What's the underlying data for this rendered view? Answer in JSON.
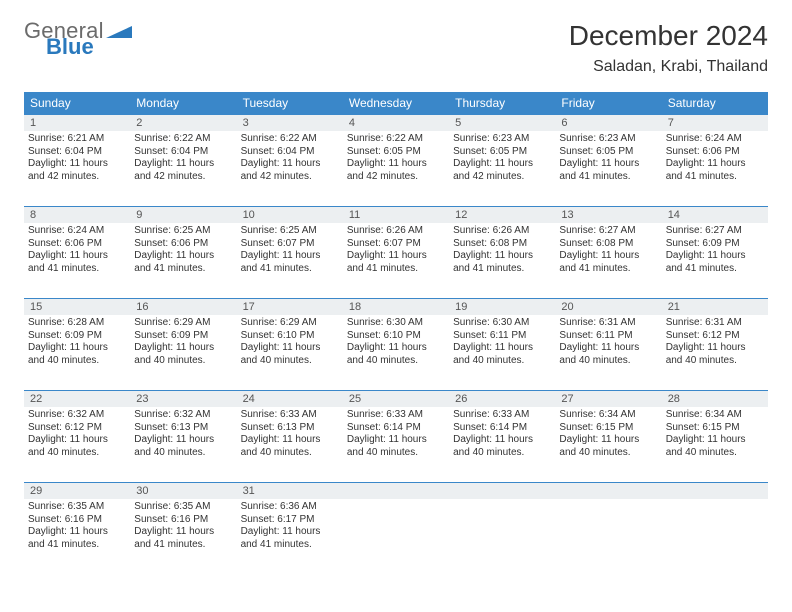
{
  "logo": {
    "textA": "General",
    "textB": "Blue",
    "shapeColor": "#2a79bd",
    "colorA": "#6b6b6b",
    "colorB": "#2a79bd"
  },
  "title": "December 2024",
  "location": "Saladan, Krabi, Thailand",
  "colors": {
    "headerBg": "#3a87c9",
    "headerText": "#ffffff",
    "dayNumBg": "#eceff1",
    "cellBorder": "#3a87c9",
    "text": "#333333"
  },
  "dayHeaders": [
    "Sunday",
    "Monday",
    "Tuesday",
    "Wednesday",
    "Thursday",
    "Friday",
    "Saturday"
  ],
  "firstDayColumn": 0,
  "days": [
    {
      "n": 1,
      "sunrise": "6:21 AM",
      "sunset": "6:04 PM",
      "daylight": "11 hours and 42 minutes."
    },
    {
      "n": 2,
      "sunrise": "6:22 AM",
      "sunset": "6:04 PM",
      "daylight": "11 hours and 42 minutes."
    },
    {
      "n": 3,
      "sunrise": "6:22 AM",
      "sunset": "6:04 PM",
      "daylight": "11 hours and 42 minutes."
    },
    {
      "n": 4,
      "sunrise": "6:22 AM",
      "sunset": "6:05 PM",
      "daylight": "11 hours and 42 minutes."
    },
    {
      "n": 5,
      "sunrise": "6:23 AM",
      "sunset": "6:05 PM",
      "daylight": "11 hours and 42 minutes."
    },
    {
      "n": 6,
      "sunrise": "6:23 AM",
      "sunset": "6:05 PM",
      "daylight": "11 hours and 41 minutes."
    },
    {
      "n": 7,
      "sunrise": "6:24 AM",
      "sunset": "6:06 PM",
      "daylight": "11 hours and 41 minutes."
    },
    {
      "n": 8,
      "sunrise": "6:24 AM",
      "sunset": "6:06 PM",
      "daylight": "11 hours and 41 minutes."
    },
    {
      "n": 9,
      "sunrise": "6:25 AM",
      "sunset": "6:06 PM",
      "daylight": "11 hours and 41 minutes."
    },
    {
      "n": 10,
      "sunrise": "6:25 AM",
      "sunset": "6:07 PM",
      "daylight": "11 hours and 41 minutes."
    },
    {
      "n": 11,
      "sunrise": "6:26 AM",
      "sunset": "6:07 PM",
      "daylight": "11 hours and 41 minutes."
    },
    {
      "n": 12,
      "sunrise": "6:26 AM",
      "sunset": "6:08 PM",
      "daylight": "11 hours and 41 minutes."
    },
    {
      "n": 13,
      "sunrise": "6:27 AM",
      "sunset": "6:08 PM",
      "daylight": "11 hours and 41 minutes."
    },
    {
      "n": 14,
      "sunrise": "6:27 AM",
      "sunset": "6:09 PM",
      "daylight": "11 hours and 41 minutes."
    },
    {
      "n": 15,
      "sunrise": "6:28 AM",
      "sunset": "6:09 PM",
      "daylight": "11 hours and 40 minutes."
    },
    {
      "n": 16,
      "sunrise": "6:29 AM",
      "sunset": "6:09 PM",
      "daylight": "11 hours and 40 minutes."
    },
    {
      "n": 17,
      "sunrise": "6:29 AM",
      "sunset": "6:10 PM",
      "daylight": "11 hours and 40 minutes."
    },
    {
      "n": 18,
      "sunrise": "6:30 AM",
      "sunset": "6:10 PM",
      "daylight": "11 hours and 40 minutes."
    },
    {
      "n": 19,
      "sunrise": "6:30 AM",
      "sunset": "6:11 PM",
      "daylight": "11 hours and 40 minutes."
    },
    {
      "n": 20,
      "sunrise": "6:31 AM",
      "sunset": "6:11 PM",
      "daylight": "11 hours and 40 minutes."
    },
    {
      "n": 21,
      "sunrise": "6:31 AM",
      "sunset": "6:12 PM",
      "daylight": "11 hours and 40 minutes."
    },
    {
      "n": 22,
      "sunrise": "6:32 AM",
      "sunset": "6:12 PM",
      "daylight": "11 hours and 40 minutes."
    },
    {
      "n": 23,
      "sunrise": "6:32 AM",
      "sunset": "6:13 PM",
      "daylight": "11 hours and 40 minutes."
    },
    {
      "n": 24,
      "sunrise": "6:33 AM",
      "sunset": "6:13 PM",
      "daylight": "11 hours and 40 minutes."
    },
    {
      "n": 25,
      "sunrise": "6:33 AM",
      "sunset": "6:14 PM",
      "daylight": "11 hours and 40 minutes."
    },
    {
      "n": 26,
      "sunrise": "6:33 AM",
      "sunset": "6:14 PM",
      "daylight": "11 hours and 40 minutes."
    },
    {
      "n": 27,
      "sunrise": "6:34 AM",
      "sunset": "6:15 PM",
      "daylight": "11 hours and 40 minutes."
    },
    {
      "n": 28,
      "sunrise": "6:34 AM",
      "sunset": "6:15 PM",
      "daylight": "11 hours and 40 minutes."
    },
    {
      "n": 29,
      "sunrise": "6:35 AM",
      "sunset": "6:16 PM",
      "daylight": "11 hours and 41 minutes."
    },
    {
      "n": 30,
      "sunrise": "6:35 AM",
      "sunset": "6:16 PM",
      "daylight": "11 hours and 41 minutes."
    },
    {
      "n": 31,
      "sunrise": "6:36 AM",
      "sunset": "6:17 PM",
      "daylight": "11 hours and 41 minutes."
    }
  ],
  "labels": {
    "sunrise": "Sunrise:",
    "sunset": "Sunset:",
    "daylight": "Daylight:"
  }
}
